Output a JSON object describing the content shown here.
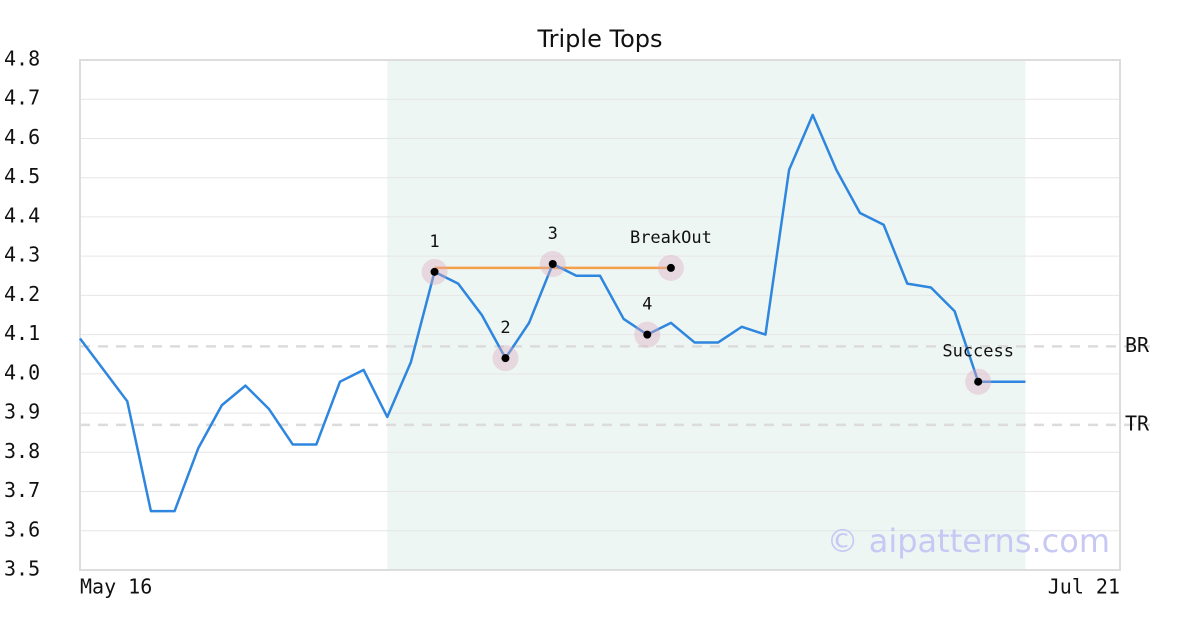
{
  "chart_data": {
    "type": "line",
    "title": "Triple Tops",
    "categories": [
      "May 16",
      null,
      null,
      null,
      null,
      null,
      null,
      null,
      null,
      null,
      null,
      null,
      null,
      null,
      null,
      null,
      null,
      null,
      null,
      null,
      null,
      null,
      null,
      null,
      null,
      null,
      null,
      null,
      null,
      null,
      null,
      null,
      null,
      null,
      null,
      null,
      null,
      null,
      null,
      null,
      null,
      null,
      null,
      null,
      "Jul 21"
    ],
    "series": [
      {
        "color": "#2e86de",
        "values": [
          4.09,
          4.01,
          3.93,
          3.65,
          3.65,
          3.81,
          3.92,
          3.97,
          3.91,
          3.82,
          3.82,
          3.98,
          4.01,
          3.89,
          4.03,
          4.26,
          4.23,
          4.15,
          4.04,
          4.13,
          4.28,
          4.25,
          4.25,
          4.14,
          4.1,
          4.13,
          4.08,
          4.08,
          4.12,
          4.1,
          4.52,
          4.66,
          4.52,
          4.41,
          4.38,
          4.23,
          4.22,
          4.16,
          3.98,
          3.98,
          3.98,
          null,
          null,
          null,
          null
        ]
      }
    ],
    "ylim": [
      3.5,
      4.8
    ],
    "yticks": [
      3.5,
      3.6,
      3.7,
      3.8,
      3.9,
      {
        "value": 4,
        "label": "4.0"
      },
      4.1,
      4.2,
      4.3,
      4.4,
      4.5,
      4.6,
      4.7,
      4.8
    ],
    "grid": true,
    "highlight": {
      "from": 13,
      "to": 40,
      "color": "#eef6f3"
    },
    "markers": [
      {
        "label": "1",
        "x": 15,
        "value": 4.26
      },
      {
        "label": "2",
        "x": 18,
        "value": 4.04
      },
      {
        "label": "3",
        "x": 20,
        "value": 4.28
      },
      {
        "label": "4",
        "x": 24,
        "value": 4.1
      },
      {
        "label": "BreakOut",
        "x": 25,
        "value": 4.27
      },
      {
        "label": "Success",
        "x": 38,
        "value": 3.98
      }
    ],
    "resistance": {
      "value": 4.27,
      "from": 15,
      "to": 25,
      "color": "#f4a04a"
    },
    "levels": [
      {
        "label": "BR",
        "value": 4.07
      },
      {
        "label": "TR",
        "value": 3.87
      }
    ],
    "watermark": "© aipatterns.com"
  }
}
